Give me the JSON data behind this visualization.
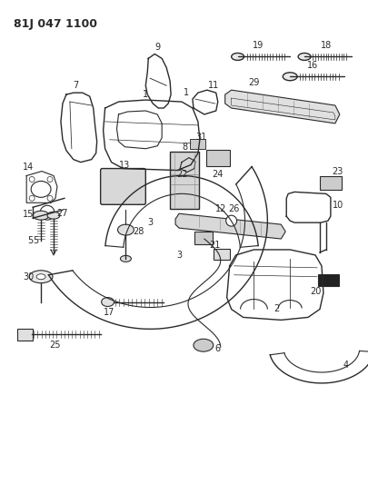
{
  "title": "81J 047 1100",
  "bg_color": "#ffffff",
  "line_color": "#2a2a2a",
  "fig_width": 4.06,
  "fig_height": 5.33,
  "dpi": 100,
  "label_fontsize": 7.0
}
